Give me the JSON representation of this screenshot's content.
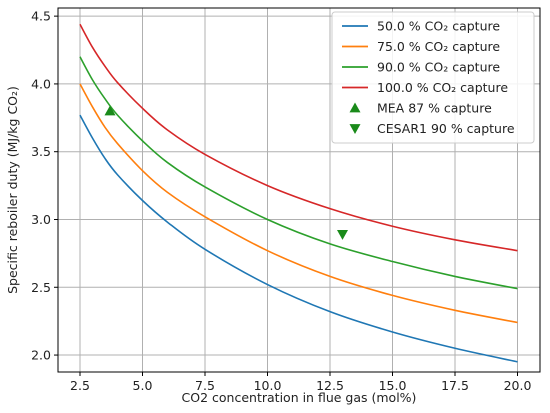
{
  "chart_data": {
    "type": "line",
    "title": "",
    "xlabel": "CO2 concentration in flue gas (mol%)",
    "ylabel": "Specific reboiler duty (MJ/kg CO₂)",
    "xlim": [
      1.62,
      20.9
    ],
    "ylim": [
      1.875,
      4.56
    ],
    "x_ticks": [
      2.5,
      5.0,
      7.5,
      10.0,
      12.5,
      15.0,
      17.5,
      20.0
    ],
    "x_tick_labels": [
      "2.5",
      "5.0",
      "7.5",
      "10.0",
      "12.5",
      "15.0",
      "17.5",
      "20.0"
    ],
    "y_ticks": [
      2.0,
      2.5,
      3.0,
      3.5,
      4.0,
      4.5
    ],
    "y_tick_labels": [
      "2.0",
      "2.5",
      "3.0",
      "3.5",
      "4.0",
      "4.5"
    ],
    "grid": true,
    "legend_position": "top-right",
    "x": [
      2.5,
      3.0,
      3.5,
      4.0,
      5.0,
      6.0,
      7.5,
      10.0,
      12.5,
      15.0,
      17.5,
      20.0
    ],
    "series": [
      {
        "name": "50.0 % CO₂ capture",
        "color": "#1f77b4",
        "values": [
          3.77,
          3.6,
          3.45,
          3.33,
          3.14,
          2.98,
          2.78,
          2.52,
          2.32,
          2.17,
          2.05,
          1.95
        ]
      },
      {
        "name": "75.0 % CO₂ capture",
        "color": "#ff7f0e",
        "values": [
          4.0,
          3.83,
          3.68,
          3.56,
          3.36,
          3.2,
          3.02,
          2.77,
          2.58,
          2.44,
          2.33,
          2.24
        ]
      },
      {
        "name": "90.0 % CO₂ capture",
        "color": "#2ca02c",
        "values": [
          4.2,
          4.03,
          3.89,
          3.77,
          3.58,
          3.42,
          3.24,
          3.0,
          2.82,
          2.69,
          2.58,
          2.49
        ]
      },
      {
        "name": "100.0 % CO₂ capture",
        "color": "#d62728",
        "values": [
          4.44,
          4.27,
          4.13,
          4.01,
          3.82,
          3.66,
          3.48,
          3.25,
          3.08,
          2.95,
          2.85,
          2.77
        ]
      }
    ],
    "markers": [
      {
        "name": "MEA 87 % capture",
        "symbol": "triangle-up",
        "color": "#1a8a1a",
        "x": 3.7,
        "y": 3.8
      },
      {
        "name": "CESAR1 90 % capture",
        "symbol": "triangle-down",
        "color": "#1a8a1a",
        "x": 13.0,
        "y": 2.89
      }
    ]
  }
}
